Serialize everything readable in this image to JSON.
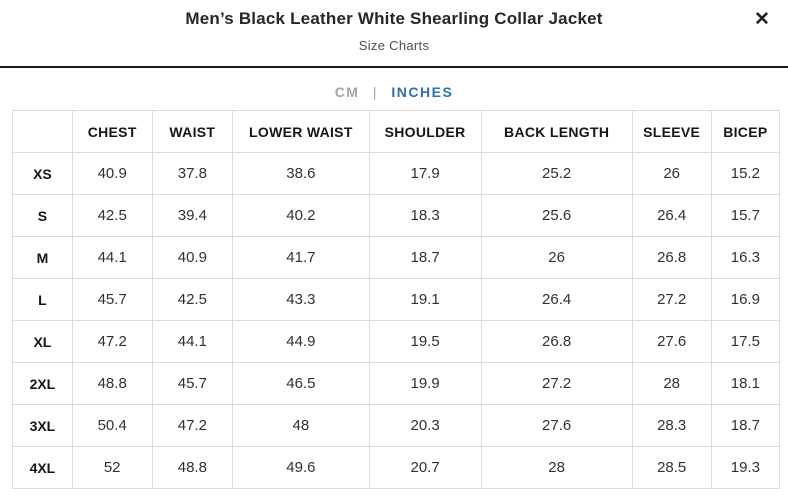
{
  "modal": {
    "title": "Men’s Black Leather White Shearling Collar Jacket",
    "subtitle": "Size Charts",
    "close_icon": "✕"
  },
  "unit_toggle": {
    "divider": "|",
    "options": [
      {
        "label": "CM",
        "active": false
      },
      {
        "label": "INCHES",
        "active": true
      }
    ],
    "active_color": "#2f6fae",
    "inactive_color": "#a1a4a8"
  },
  "chart_data": {
    "type": "table",
    "title": "Men’s Black Leather White Shearling Collar Jacket — Size Chart (Inches)",
    "unit": "INCHES",
    "columns": [
      "",
      "CHEST",
      "WAIST",
      "LOWER WAIST",
      "SHOULDER",
      "BACK LENGTH",
      "SLEEVE",
      "BICEP"
    ],
    "rows": [
      {
        "size": "XS",
        "values": [
          "40.9",
          "37.8",
          "38.6",
          "17.9",
          "25.2",
          "26",
          "15.2"
        ]
      },
      {
        "size": "S",
        "values": [
          "42.5",
          "39.4",
          "40.2",
          "18.3",
          "25.6",
          "26.4",
          "15.7"
        ]
      },
      {
        "size": "M",
        "values": [
          "44.1",
          "40.9",
          "41.7",
          "18.7",
          "26",
          "26.8",
          "16.3"
        ]
      },
      {
        "size": "L",
        "values": [
          "45.7",
          "42.5",
          "43.3",
          "19.1",
          "26.4",
          "27.2",
          "16.9"
        ]
      },
      {
        "size": "XL",
        "values": [
          "47.2",
          "44.1",
          "44.9",
          "19.5",
          "26.8",
          "27.6",
          "17.5"
        ]
      },
      {
        "size": "2XL",
        "values": [
          "48.8",
          "45.7",
          "46.5",
          "19.9",
          "27.2",
          "28",
          "18.1"
        ]
      },
      {
        "size": "3XL",
        "values": [
          "50.4",
          "47.2",
          "48",
          "20.3",
          "27.6",
          "28.3",
          "18.7"
        ]
      },
      {
        "size": "4XL",
        "values": [
          "52",
          "48.8",
          "49.6",
          "20.7",
          "28",
          "28.5",
          "19.3"
        ]
      }
    ],
    "column_widths_percent": [
      7.8,
      10.4,
      10.5,
      17.8,
      14.6,
      19.7,
      10.3,
      8.9
    ]
  }
}
